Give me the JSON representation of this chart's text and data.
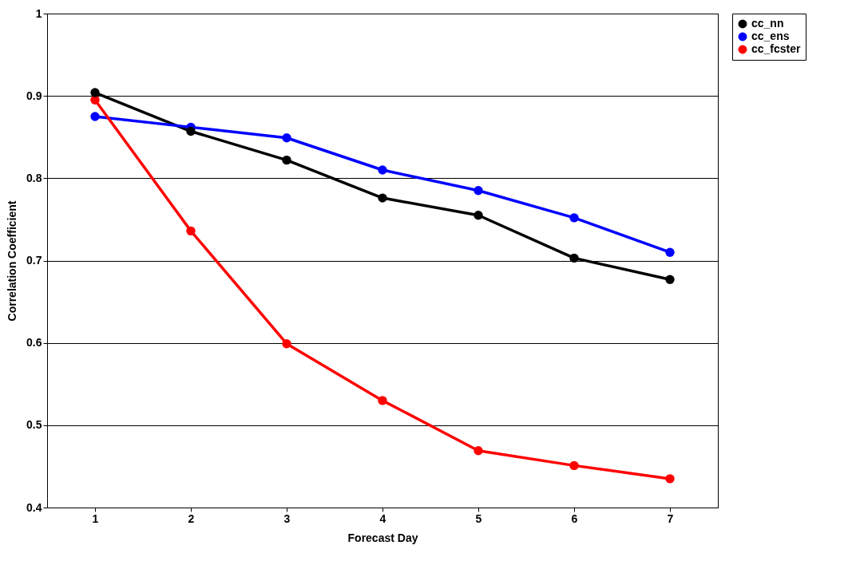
{
  "chart_data": {
    "type": "line",
    "xlabel": "Forecast Day",
    "ylabel": "Correlation Coefficient",
    "categories": [
      "1",
      "2",
      "3",
      "4",
      "5",
      "6",
      "7"
    ],
    "series": [
      {
        "name": "cc_nn",
        "color": "#000000",
        "values": [
          0.904,
          0.857,
          0.822,
          0.776,
          0.755,
          0.703,
          0.677
        ]
      },
      {
        "name": "cc_ens",
        "color": "#0000ff",
        "values": [
          0.875,
          0.862,
          0.849,
          0.81,
          0.785,
          0.752,
          0.71
        ]
      },
      {
        "name": "cc_fcster",
        "color": "#ff0000",
        "values": [
          0.895,
          0.736,
          0.599,
          0.53,
          0.469,
          0.451,
          0.435
        ]
      }
    ],
    "ylim": [
      0.4,
      1
    ],
    "yticks": [
      0.4,
      0.5,
      0.6,
      0.7,
      0.8,
      0.9,
      1
    ],
    "grid": "y",
    "legend": "right",
    "marker": "circle",
    "line_style": "solid"
  }
}
